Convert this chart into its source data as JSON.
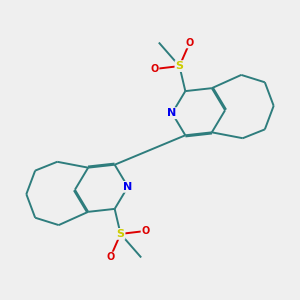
{
  "bg_color": "#efefef",
  "bond_color": "#2e7d7d",
  "N_color": "#0000ee",
  "O_color": "#dd0000",
  "S_color": "#cccc00",
  "line_width": 1.4,
  "font_size": 8,
  "xlim": [
    0,
    10
  ],
  "ylim": [
    0,
    10
  ]
}
